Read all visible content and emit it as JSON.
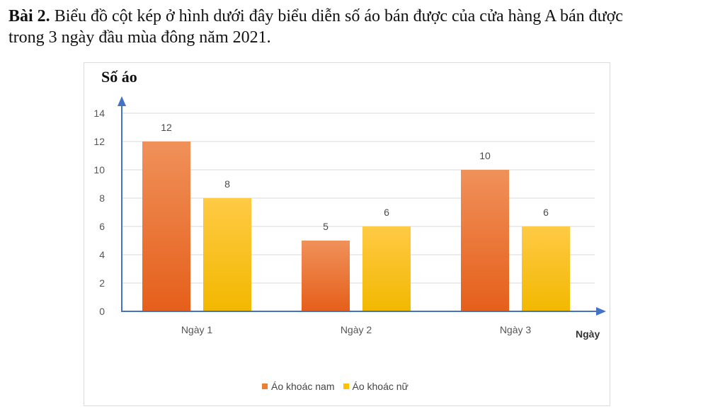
{
  "problem": {
    "label": "Bài 2.",
    "text_line1": " Biểu đồ cột kép ở hình dưới đây biểu diễn số áo bán được của cửa hàng A bán được",
    "text_line2": "trong 3 ngày đầu mùa đông năm 2021."
  },
  "colors": {
    "axis": "#4472c4",
    "grid": "#d9d9d9",
    "series_1": "#ed7d31",
    "series_1_dark": "#e8661f",
    "series_2": "#ffc000",
    "series_2_light": "#ffc63a"
  },
  "chart_data": {
    "type": "bar",
    "title": "",
    "ylabel": "Số áo",
    "xlabel": "Ngày",
    "categories": [
      "Ngày 1",
      "Ngày 2",
      "Ngày 3"
    ],
    "series": [
      {
        "name": "Áo khoác nam",
        "values": [
          12,
          5,
          10
        ]
      },
      {
        "name": "Áo khoác nữ",
        "values": [
          8,
          6,
          6
        ]
      }
    ],
    "ylim": [
      0,
      14
    ],
    "yticks": [
      0,
      2,
      4,
      6,
      8,
      10,
      12,
      14
    ],
    "grid": true,
    "legend_position": "bottom"
  }
}
